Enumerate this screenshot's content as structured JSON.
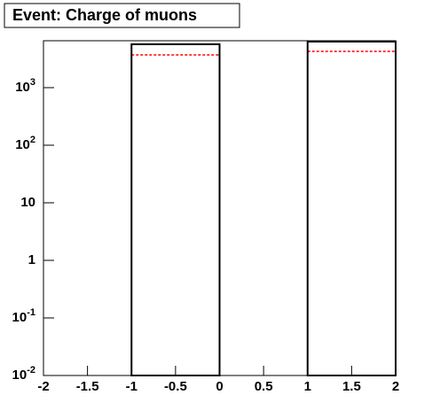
{
  "chart_data": {
    "type": "histogram",
    "title": "Event: Charge of muons",
    "bins": [
      -2,
      -1,
      0,
      1,
      2
    ],
    "series": [
      {
        "color": "#000000",
        "values": [
          0,
          5675,
          0,
          6310
        ]
      },
      {
        "color": "#ff0000",
        "dashed": true,
        "values": [
          0,
          3710,
          0,
          4270
        ]
      }
    ],
    "xlim": [
      -2,
      2
    ],
    "xticks": [
      -2,
      -1.5,
      -1,
      -0.5,
      0,
      0.5,
      1,
      1.5,
      2
    ],
    "ylim": [
      0.01,
      6530
    ],
    "log_y": true,
    "yticks": [
      {
        "value": 0.01,
        "label": "10",
        "exponent": "-2"
      },
      {
        "value": 0.1,
        "label": "10",
        "exponent": "-1"
      },
      1,
      10,
      {
        "value": 100,
        "label": "10",
        "exponent": "2"
      },
      {
        "value": 1000,
        "label": "10",
        "exponent": "3"
      }
    ]
  }
}
